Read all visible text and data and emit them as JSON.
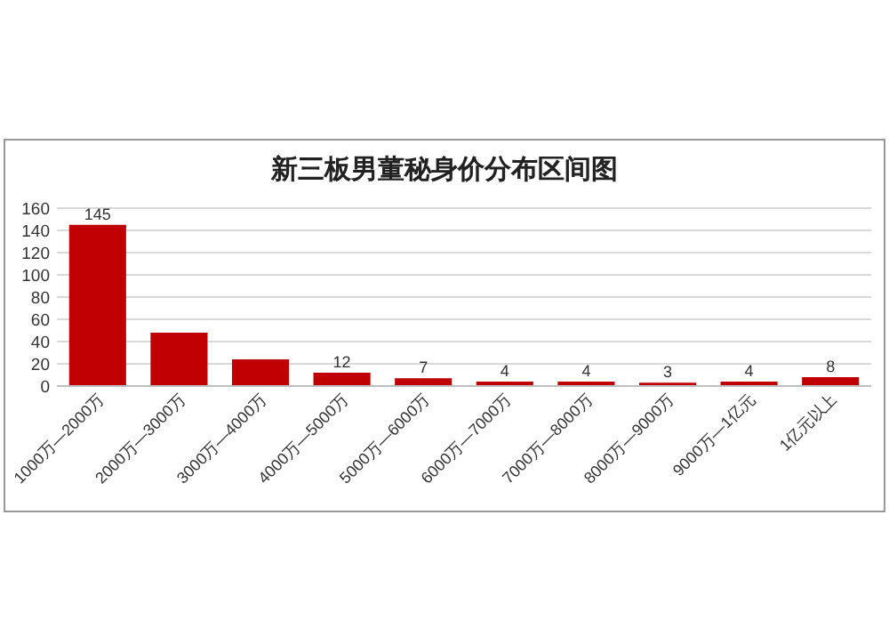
{
  "chart_data": {
    "type": "bar",
    "title": "新三板男董秘身价分布区间图",
    "categories": [
      "1000万—2000万",
      "2000万—3000万",
      "3000万—4000万",
      "4000万—5000万",
      "5000万—6000万",
      "6000万—7000万",
      "7000万—8000万",
      "8000万—9000万",
      "9000万—1亿元",
      "1亿元以上"
    ],
    "values": [
      145,
      48,
      24,
      12,
      7,
      4,
      4,
      3,
      4,
      8
    ],
    "value_labels": [
      "145",
      null,
      null,
      "12",
      "7",
      "4",
      "4",
      "3",
      "4",
      "8"
    ],
    "color": "#c00000",
    "ylim": [
      0,
      160
    ],
    "yticks": [
      0,
      20,
      40,
      60,
      80,
      100,
      120,
      140,
      160
    ],
    "grid": "y"
  }
}
